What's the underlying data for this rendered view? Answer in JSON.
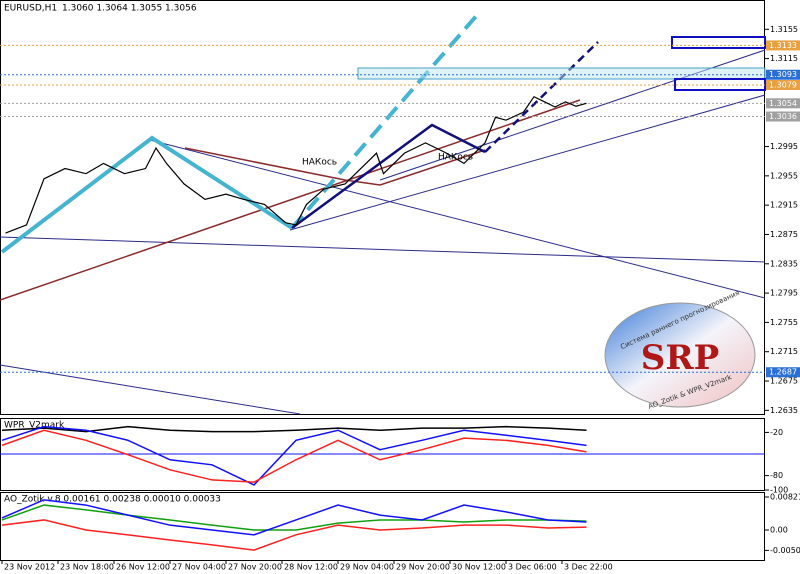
{
  "chart_data": [
    {
      "type": "line",
      "title": "EURUSD,H1",
      "subtitle": "1.3060 1.3064 1.3055 1.3056",
      "x": [
        1,
        7,
        12,
        18,
        24,
        29,
        35,
        41,
        44,
        47,
        52,
        58,
        64,
        69,
        75,
        81,
        84,
        87,
        92,
        98,
        104,
        107,
        109,
        115,
        121,
        127,
        132,
        138,
        141,
        144,
        149,
        152,
        155,
        158,
        161,
        164,
        167
      ],
      "values": [
        1.2877,
        1.2888,
        1.2951,
        1.2965,
        1.2958,
        1.2972,
        1.2958,
        1.2965,
        1.2993,
        1.2972,
        1.2944,
        1.2923,
        1.293,
        1.2923,
        1.2916,
        1.2891,
        1.2888,
        1.2916,
        1.2937,
        1.2944,
        1.2972,
        1.2986,
        1.2958,
        1.2986,
        1.3,
        1.2986,
        1.2972,
        1.3,
        1.3035,
        1.3031,
        1.3042,
        1.3063,
        1.3056,
        1.3049,
        1.3056,
        1.305,
        1.3054
      ],
      "color": "#000000",
      "xlim": [
        0,
        168
      ],
      "xticks": [
        {
          "value": 0,
          "label": "23 Nov 2012"
        },
        {
          "value": 16,
          "label": "23 Nov 18:00"
        },
        {
          "value": 32,
          "label": "26 Nov 12:00"
        },
        {
          "value": 48,
          "label": "27 Nov 04:00"
        },
        {
          "value": 64,
          "label": "27 Nov 20:00"
        },
        {
          "value": 80,
          "label": "28 Nov 12:00"
        },
        {
          "value": 96,
          "label": "29 Nov 04:00"
        },
        {
          "value": 112,
          "label": "29 Nov 20:00"
        },
        {
          "value": 128,
          "label": "30 Nov 12:00"
        },
        {
          "value": 144,
          "label": "3 Dec 06:00"
        },
        {
          "value": 160,
          "label": "3 Dec 22:00"
        }
      ],
      "ylim": [
        1.263,
        1.3195
      ],
      "yticks": [
        1.3155,
        1.3115,
        1.2995,
        1.2955,
        1.2915,
        1.2875,
        1.2835,
        1.2795,
        1.2755,
        1.2715,
        1.2675,
        1.2635
      ],
      "levels": [
        {
          "value": 1.3133,
          "color": "#e8a040"
        },
        {
          "value": 1.3093,
          "color": "#2a6fd6"
        },
        {
          "value": 1.3079,
          "color": "#e8a040"
        },
        {
          "value": 1.3054,
          "color": "#a0a0a0"
        },
        {
          "value": 1.3036,
          "color": "#a0a0a0"
        },
        {
          "value": 1.2687,
          "color": "#2a6fd6"
        }
      ],
      "annotations": [
        "НАКось",
        "НАКось"
      ],
      "logo": {
        "text": "SRP",
        "caption": "Система раннего прогнозирования",
        "credit": "AO_Zotik & WPR_V2mark"
      }
    },
    {
      "type": "line",
      "title": "WPR_V2mark",
      "x": [
        0,
        12,
        24,
        36,
        48,
        60,
        72,
        84,
        96,
        108,
        120,
        132,
        144,
        156,
        167
      ],
      "series": [
        {
          "color": "#000000",
          "values": [
            -17,
            -14,
            -19,
            -12,
            -17,
            -19,
            -19,
            -17,
            -14,
            -17,
            -14,
            -14,
            -12,
            -14,
            -17
          ]
        },
        {
          "color": "#1010ff",
          "values": [
            -31,
            -12,
            -17,
            -31,
            -58,
            -65,
            -93,
            -31,
            -17,
            -44,
            -31,
            -17,
            -24,
            -31,
            -38
          ]
        },
        {
          "color": "#ff2020",
          "values": [
            -38,
            -17,
            -31,
            -51,
            -72,
            -86,
            -89,
            -58,
            -31,
            -58,
            -44,
            -28,
            -31,
            -38,
            -47
          ]
        }
      ],
      "xlim": [
        0,
        168
      ],
      "ylim": [
        -100,
        0
      ],
      "yticks": [
        -20,
        -80,
        -100
      ],
      "level": -50,
      "level_color": "#1010ff"
    },
    {
      "type": "line",
      "title": "AO_Zotik v.8 0.00161 0.00238 0.00010 0.00033",
      "x": [
        0,
        12,
        24,
        36,
        48,
        60,
        72,
        84,
        96,
        108,
        120,
        132,
        144,
        156,
        167
      ],
      "series": [
        {
          "color": "#10a010",
          "values": [
            0.0025,
            0.0062,
            0.005,
            0.0037,
            0.0025,
            0.0012,
            0,
            0,
            0.0017,
            0.0025,
            0.0025,
            0.002,
            0.0025,
            0.0025,
            0.0022
          ]
        },
        {
          "color": "#1010ff",
          "values": [
            0.003,
            0.0075,
            0.0062,
            0.0037,
            0.0012,
            0,
            -0.0012,
            0.0025,
            0.0062,
            0.0037,
            0.0025,
            0.0062,
            0.0045,
            0.0025,
            0.002
          ]
        },
        {
          "color": "#ff2020",
          "values": [
            0.0012,
            0.0025,
            0,
            -0.0012,
            -0.0025,
            -0.0037,
            -0.005,
            -0.0012,
            0.0012,
            0,
            0.0005,
            0.0012,
            0.0012,
            0.0005,
            0.0007
          ]
        }
      ],
      "xlim": [
        0,
        168
      ],
      "ylim": [
        -0.00746,
        0.00945
      ],
      "yticks": [
        0.00821,
        {
          "value": 0,
          "label": "0.00"
        },
        -0.00507
      ]
    }
  ]
}
